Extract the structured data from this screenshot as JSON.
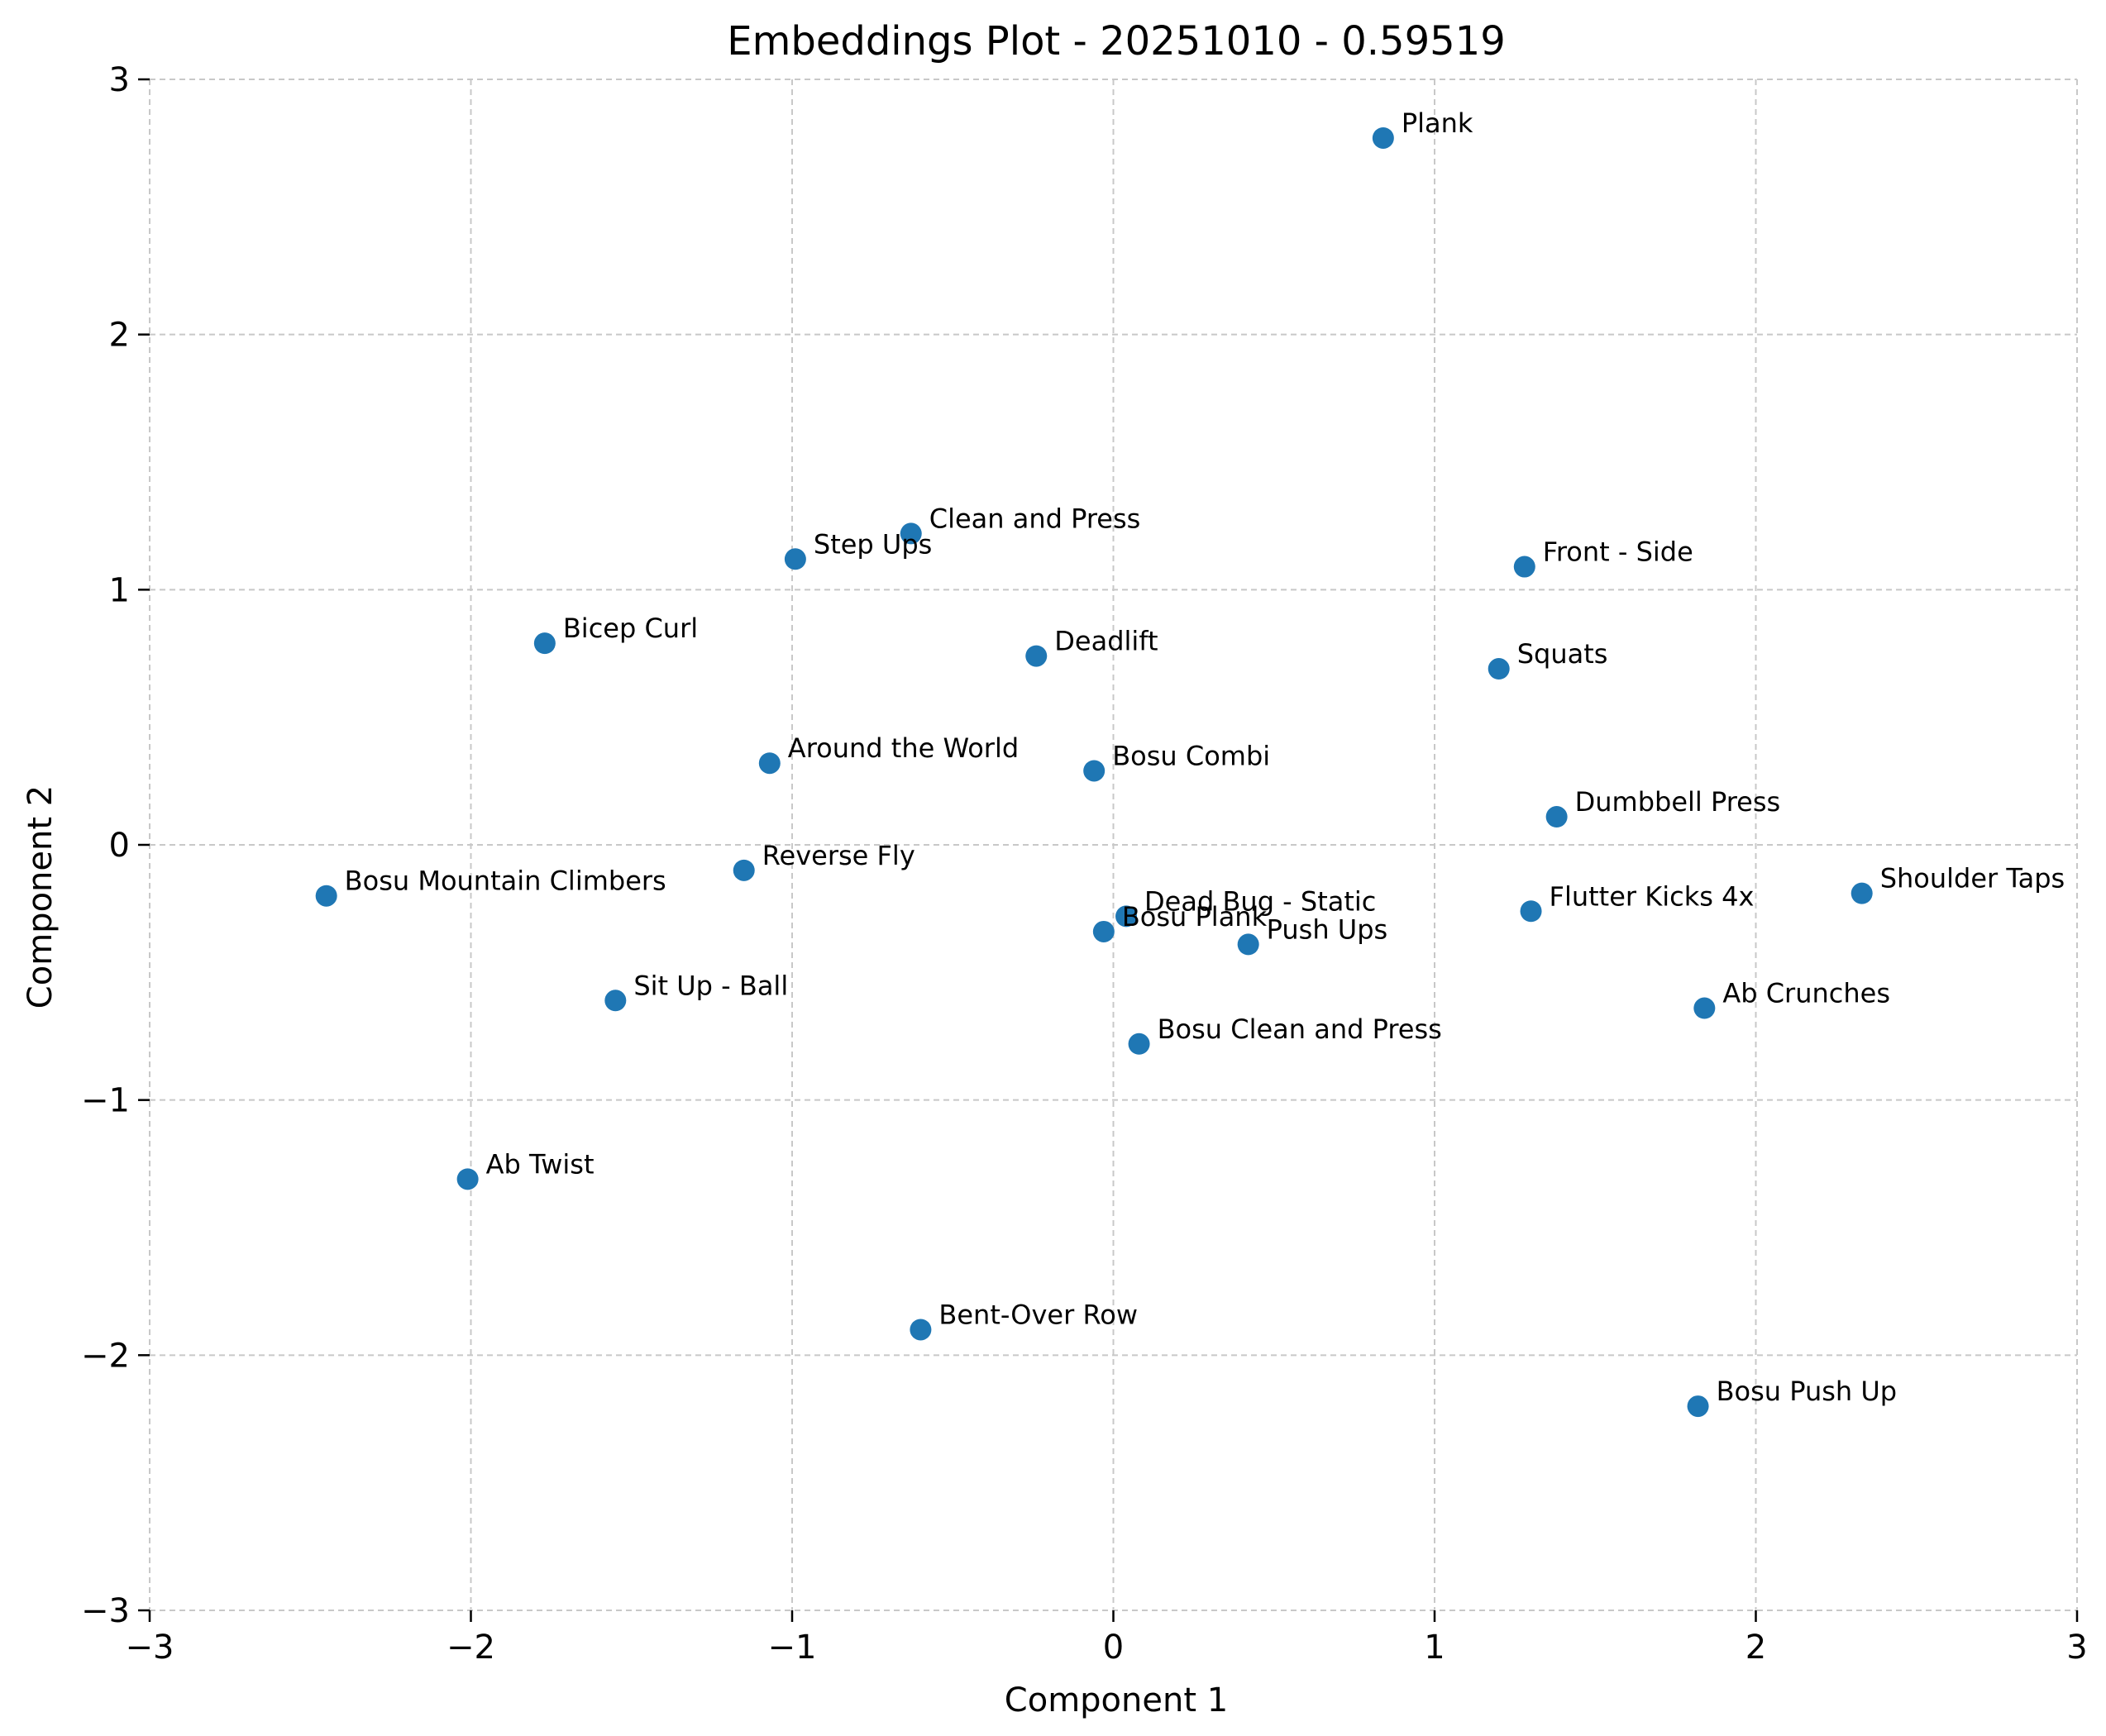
{
  "chart_data": {
    "type": "scatter",
    "title": "Embeddings Plot - 20251010 - 0.59519",
    "xlabel": "Component 1",
    "ylabel": "Component 2",
    "xlim": [
      -3,
      3
    ],
    "ylim": [
      -3,
      3
    ],
    "xticks": [
      "−3",
      "−2",
      "−1",
      "0",
      "1",
      "2",
      "3"
    ],
    "yticks": [
      "−3",
      "−2",
      "−1",
      "0",
      "1",
      "2",
      "3"
    ],
    "grid": true,
    "marker_color": "#1f77b4",
    "points": [
      {
        "label": "Plank",
        "x": 0.84,
        "y": 2.77
      },
      {
        "label": "Clean and Press",
        "x": -0.63,
        "y": 1.22
      },
      {
        "label": "Step Ups",
        "x": -0.99,
        "y": 1.12
      },
      {
        "label": "Front - Side",
        "x": 1.28,
        "y": 1.09
      },
      {
        "label": "Bicep Curl",
        "x": -1.77,
        "y": 0.79
      },
      {
        "label": "Deadlift",
        "x": -0.24,
        "y": 0.74
      },
      {
        "label": "Squats",
        "x": 1.2,
        "y": 0.69
      },
      {
        "label": "Around the World",
        "x": -1.07,
        "y": 0.32
      },
      {
        "label": "Bosu Combi",
        "x": -0.06,
        "y": 0.29
      },
      {
        "label": "Dumbbell Press",
        "x": 1.38,
        "y": 0.11
      },
      {
        "label": "Reverse Fly",
        "x": -1.15,
        "y": -0.1
      },
      {
        "label": "Bosu Mountain Climbers",
        "x": -2.45,
        "y": -0.2
      },
      {
        "label": "Shoulder Taps",
        "x": 2.33,
        "y": -0.19
      },
      {
        "label": "Flutter Kicks 4x",
        "x": 1.3,
        "y": -0.26
      },
      {
        "label": "Dead Bug - Static",
        "x": 0.04,
        "y": -0.28
      },
      {
        "label": "Bosu Plank",
        "x": -0.03,
        "y": -0.34
      },
      {
        "label": "Push Ups",
        "x": 0.42,
        "y": -0.39
      },
      {
        "label": "Sit Up - Ball",
        "x": -1.55,
        "y": -0.61
      },
      {
        "label": "Ab Crunches",
        "x": 1.84,
        "y": -0.64
      },
      {
        "label": "Bosu Clean and Press",
        "x": 0.08,
        "y": -0.78
      },
      {
        "label": "Ab Twist",
        "x": -2.01,
        "y": -1.31
      },
      {
        "label": "Bent-Over Row",
        "x": -0.6,
        "y": -1.9
      },
      {
        "label": "Bosu Push Up",
        "x": 1.82,
        "y": -2.2
      }
    ]
  }
}
